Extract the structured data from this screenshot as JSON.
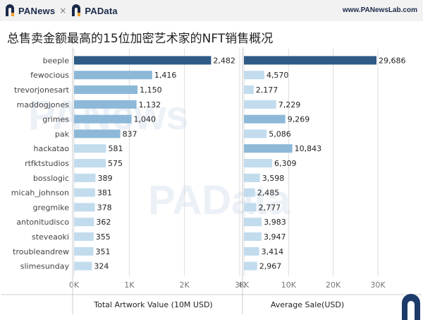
{
  "header": {
    "brand_left": "PANews",
    "brand_sep": "×",
    "brand_right": "PAData",
    "url": "www.PANewsLab.com"
  },
  "title": "总售卖金额最高的15位加密艺术家的NFT销售概况",
  "watermarks": [
    "PANews",
    "PAData"
  ],
  "colors": {
    "dark_bar": "#2f5b86",
    "mid_bar": "#8db8d8",
    "light_bar": "#c2dcee",
    "grid": "#dddddd",
    "accent": "#f2a12a"
  },
  "chart_data": [
    {
      "type": "bar",
      "orientation": "horizontal",
      "xlabel": "Total Artwork Value (10M USD)",
      "xlim": [
        0,
        3000
      ],
      "ticks": [
        0,
        1000,
        2000,
        3000
      ],
      "tick_labels": [
        "0K",
        "1K",
        "2K",
        "3K"
      ],
      "categories": [
        "beeple",
        "fewocious",
        "trevorjonesart",
        "maddogjones",
        "grimes",
        "pak",
        "hackatao",
        "rtfktstudios",
        "bosslogic",
        "micah_johnson",
        "gregmike",
        "antonitudisco",
        "steveaoki",
        "troubleandrew",
        "slimesunday"
      ],
      "values": [
        2482,
        1416,
        1150,
        1132,
        1040,
        837,
        581,
        575,
        389,
        381,
        378,
        362,
        355,
        351,
        324
      ],
      "value_labels": [
        "2,482",
        "1,416",
        "1,150",
        "1,132",
        "1,040",
        "837",
        "581",
        "575",
        "389",
        "381",
        "378",
        "362",
        "355",
        "351",
        "324"
      ]
    },
    {
      "type": "bar",
      "orientation": "horizontal",
      "xlabel": "Average Sale(USD)",
      "xlim": [
        0,
        30000
      ],
      "ticks": [
        0,
        10000,
        20000,
        30000
      ],
      "tick_labels": [
        "0K",
        "10K",
        "20K",
        "30K"
      ],
      "categories": [
        "beeple",
        "fewocious",
        "trevorjonesart",
        "maddogjones",
        "grimes",
        "pak",
        "hackatao",
        "rtfktstudios",
        "bosslogic",
        "micah_johnson",
        "gregmike",
        "antonitudisco",
        "steveaoki",
        "troubleandrew",
        "slimesunday"
      ],
      "values": [
        29686,
        4570,
        2177,
        7229,
        9269,
        5086,
        10843,
        6309,
        3598,
        2485,
        2777,
        3983,
        3947,
        3414,
        2967
      ],
      "value_labels": [
        "29,686",
        "4,570",
        "2,177",
        "7,229",
        "9,269",
        "5,086",
        "10,843",
        "6,309",
        "3,598",
        "2,485",
        "2,777",
        "3,983",
        "3,947",
        "3,414",
        "2,967"
      ]
    }
  ]
}
